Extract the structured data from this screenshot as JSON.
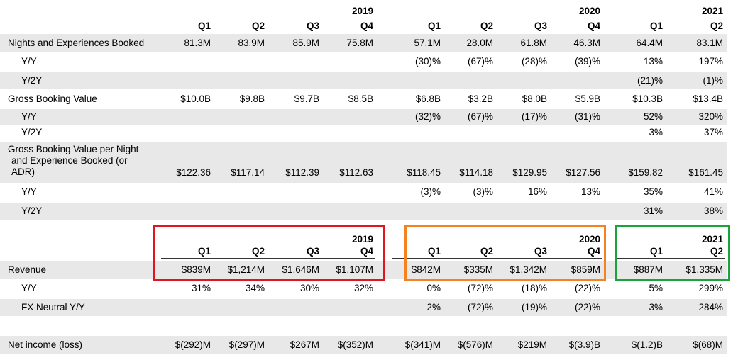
{
  "year_headers": [
    "2019",
    "2020",
    "2021"
  ],
  "quarter_headers": [
    "Q1",
    "Q2",
    "Q3",
    "Q4",
    "Q1",
    "Q2",
    "Q3",
    "Q4",
    "Q1",
    "Q2"
  ],
  "rows_top": [
    {
      "label": "Nights and Experiences Booked",
      "indent": false,
      "values": [
        "81.3M",
        "83.9M",
        "85.9M",
        "75.8M",
        "57.1M",
        "28.0M",
        "61.8M",
        "46.3M",
        "64.4M",
        "83.1M"
      ]
    },
    {
      "label": "Y/Y",
      "indent": true,
      "values": [
        "",
        "",
        "",
        "",
        "(30)%",
        "(67)%",
        "(28)%",
        "(39)%",
        "13%",
        "197%"
      ]
    },
    {
      "label": "Y/2Y",
      "indent": true,
      "values": [
        "",
        "",
        "",
        "",
        "",
        "",
        "",
        "",
        "(21)%",
        "(1)%"
      ]
    },
    {
      "label": "Gross Booking Value",
      "indent": false,
      "values": [
        "$10.0B",
        "$9.8B",
        "$9.7B",
        "$8.5B",
        "$6.8B",
        "$3.2B",
        "$8.0B",
        "$5.9B",
        "$10.3B",
        "$13.4B"
      ]
    },
    {
      "label": "Y/Y",
      "indent": true,
      "values": [
        "",
        "",
        "",
        "",
        "(32)%",
        "(67)%",
        "(17)%",
        "(31)%",
        "52%",
        "320%"
      ]
    },
    {
      "label": "Y/2Y",
      "indent": true,
      "values": [
        "",
        "",
        "",
        "",
        "",
        "",
        "",
        "",
        "3%",
        "37%"
      ]
    },
    {
      "label_lines": [
        "Gross Booking Value per Night",
        "and Experience Booked (or",
        "ADR)"
      ],
      "indent": false,
      "values": [
        "$122.36",
        "$117.14",
        "$112.39",
        "$112.63",
        "$118.45",
        "$114.18",
        "$129.95",
        "$127.56",
        "$159.82",
        "$161.45"
      ]
    },
    {
      "label": "Y/Y",
      "indent": true,
      "values": [
        "",
        "",
        "",
        "",
        "(3)%",
        "(3)%",
        "16%",
        "13%",
        "35%",
        "41%"
      ]
    },
    {
      "label": "Y/2Y",
      "indent": true,
      "values": [
        "",
        "",
        "",
        "",
        "",
        "",
        "",
        "",
        "31%",
        "38%"
      ]
    }
  ],
  "rows_bottom": [
    {
      "label": "Revenue",
      "indent": false,
      "values": [
        "$839M",
        "$1,214M",
        "$1,646M",
        "$1,107M",
        "$842M",
        "$335M",
        "$1,342M",
        "$859M",
        "$887M",
        "$1,335M"
      ]
    },
    {
      "label": "Y/Y",
      "indent": true,
      "values": [
        "31%",
        "34%",
        "30%",
        "32%",
        "0%",
        "(72)%",
        "(18)%",
        "(22)%",
        "5%",
        "299%"
      ]
    },
    {
      "label": "FX Neutral Y/Y",
      "indent": true,
      "values": [
        "",
        "",
        "",
        "",
        "2%",
        "(72)%",
        "(19)%",
        "(22)%",
        "3%",
        "284%"
      ]
    },
    {
      "label": "Net income (loss)",
      "indent": false,
      "values": [
        "$(292)M",
        "$(297)M",
        "$267M",
        "$(352)M",
        "$(341)M",
        "$(576)M",
        "$219M",
        "$(3.9)B",
        "$(1.2)B",
        "$(68)M"
      ]
    }
  ],
  "highlight_colors": [
    "#e0161f",
    "#f58220",
    "#1aa33b"
  ],
  "band_color": "#e8e8e8"
}
